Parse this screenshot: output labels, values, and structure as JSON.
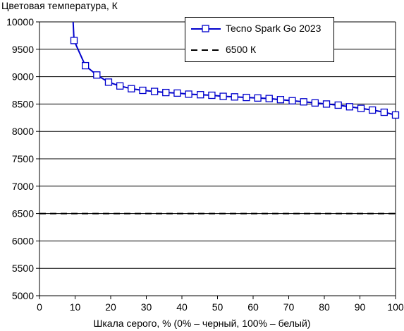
{
  "chart_data": {
    "type": "line",
    "title": "",
    "ylabel": "Цветовая температура, К",
    "xlabel": "Шкала серого, % (0% – черный, 100% – белый)",
    "xlim": [
      0,
      100
    ],
    "ylim": [
      5000,
      10000
    ],
    "xticks": [
      "0",
      "10",
      "20",
      "30",
      "40",
      "50",
      "60",
      "70",
      "80",
      "90",
      "100"
    ],
    "yticks": [
      "5000",
      "5500",
      "6000",
      "6500",
      "7000",
      "7500",
      "8000",
      "8500",
      "9000",
      "9500",
      "10000"
    ],
    "grid": "horizontal",
    "legend_position": "top-right",
    "series": [
      {
        "name": "Tecno Spark Go 2023",
        "color": "#0000cc",
        "marker": "square",
        "x": [
          6.5,
          9.7,
          12.9,
          16.1,
          19.4,
          22.6,
          25.8,
          29.0,
          32.3,
          35.5,
          38.7,
          41.9,
          45.2,
          48.4,
          51.6,
          54.8,
          58.1,
          61.3,
          64.5,
          67.7,
          71.0,
          74.2,
          77.4,
          80.6,
          83.9,
          87.1,
          90.3,
          93.5,
          96.8,
          100
        ],
        "y": [
          14000,
          9660,
          9200,
          9030,
          8900,
          8830,
          8780,
          8750,
          8730,
          8710,
          8700,
          8680,
          8670,
          8660,
          8640,
          8630,
          8620,
          8610,
          8600,
          8580,
          8560,
          8540,
          8520,
          8500,
          8480,
          8450,
          8420,
          8390,
          8350,
          8300
        ]
      },
      {
        "name": "6500 К",
        "color": "#000000",
        "style": "dashed",
        "x": [
          0,
          100
        ],
        "y": [
          6500,
          6500
        ]
      }
    ]
  }
}
